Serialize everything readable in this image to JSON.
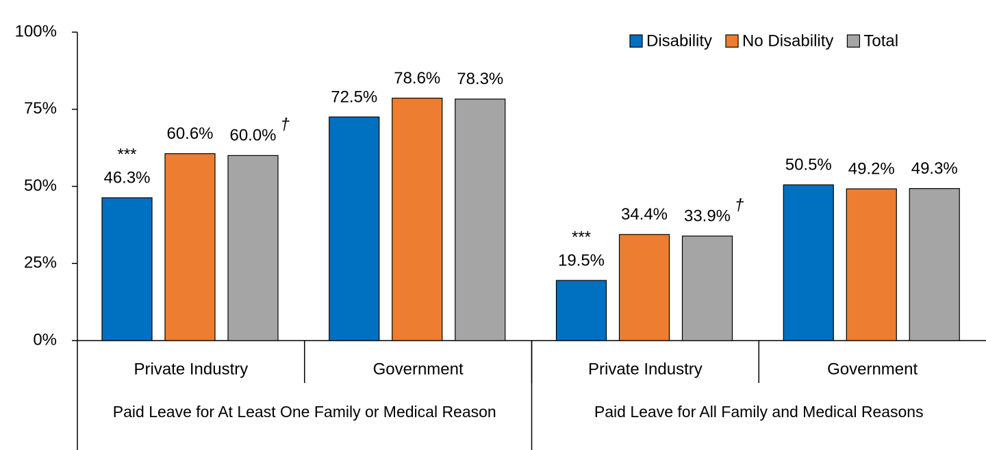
{
  "chart_data": {
    "type": "bar",
    "categories": [
      "Private Industry",
      "Government",
      "Private Industry",
      "Government"
    ],
    "category_groups": [
      {
        "label": "Paid Leave for At Least One Family or Medical Reason",
        "span": 2
      },
      {
        "label": "Paid Leave for All Family and Medical Reasons",
        "span": 2
      }
    ],
    "series": [
      {
        "name": "Disability",
        "color": "#0070c0",
        "values": [
          46.3,
          72.5,
          19.5,
          50.5
        ],
        "value_labels": [
          "46.3%",
          "72.5%",
          "19.5%",
          "50.5%"
        ],
        "annotations": [
          "***",
          null,
          "***",
          null
        ]
      },
      {
        "name": "No Disability",
        "color": "#ed7d31",
        "values": [
          60.6,
          78.6,
          34.4,
          49.2
        ],
        "value_labels": [
          "60.6%",
          "78.6%",
          "34.4%",
          "49.2%"
        ]
      },
      {
        "name": "Total",
        "color": "#a5a5a5",
        "values": [
          60.0,
          78.3,
          33.9,
          49.3
        ],
        "value_labels": [
          "60.0%",
          "78.3%",
          "33.9%",
          "49.3%"
        ],
        "annotations": [
          "†",
          null,
          "†",
          null
        ]
      }
    ],
    "ylim": [
      0,
      100
    ],
    "yticks": [
      {
        "value": 0,
        "label": "0%"
      },
      {
        "value": 25,
        "label": "25%"
      },
      {
        "value": 50,
        "label": "50%"
      },
      {
        "value": 75,
        "label": "75%"
      },
      {
        "value": 100,
        "label": "100%"
      }
    ],
    "legend": "upper right",
    "grid": false
  }
}
